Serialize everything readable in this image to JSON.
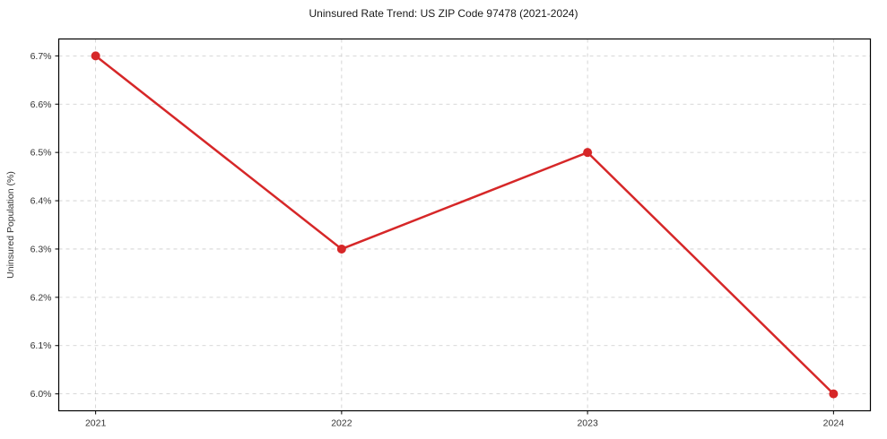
{
  "chart_data": {
    "type": "line",
    "title": "Uninsured Rate Trend: US ZIP Code 97478 (2021-2024)",
    "xlabel": "",
    "ylabel": "Uninsured Population (%)",
    "x": [
      2021,
      2022,
      2023,
      2024
    ],
    "values": [
      6.7,
      6.3,
      6.5,
      6.0
    ],
    "x_tick_labels": [
      "2021",
      "2022",
      "2023",
      "2024"
    ],
    "y_ticks": [
      6.0,
      6.1,
      6.2,
      6.3,
      6.4,
      6.5,
      6.6,
      6.7
    ],
    "y_tick_suffix": "%",
    "xlim": [
      2020.85,
      2024.15
    ],
    "ylim": [
      5.965,
      6.735
    ],
    "grid": "both-dashed",
    "legend": "none",
    "line_color": "#d62728",
    "marker": "circle",
    "marker_color": "#d62728",
    "grid_color": "#cccccc",
    "spine_color": "#000000",
    "tick_label_color": "#333333",
    "title_color": "#1a1a1a"
  }
}
